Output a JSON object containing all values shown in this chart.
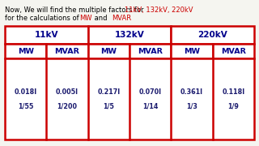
{
  "bg_color": "#f5f5f0",
  "table_border_color": "#cc0000",
  "header_text_color": "#00008B",
  "cell_text_color": "#1a1a6e",
  "voltage_headers": [
    "11kV",
    "132kV",
    "220kV"
  ],
  "sub_headers": [
    "MW",
    "MVAR",
    "MW",
    "MVAR",
    "MW",
    "MVAR"
  ],
  "cell_data_line1": [
    "0.018I",
    "0.005I",
    "0.217I",
    "0.070I",
    "0.361I",
    "0.118I"
  ],
  "cell_data_line2": [
    "1/55",
    "1/200",
    "1/5",
    "1/14",
    "1/3",
    "1/9"
  ],
  "line1_plain": "Now, We will find the multiple factors for ",
  "line1_red": "11kV, 132kV, 220kV",
  "line2_plain1": "for the calculations of ",
  "line2_red1": "MW",
  "line2_plain2": " and ",
  "line2_red2": "MVAR",
  "title_fontsize": 6.0,
  "header_fontsize": 7.5,
  "sub_header_fontsize": 6.8,
  "cell_fontsize": 5.8,
  "lw": 1.8
}
